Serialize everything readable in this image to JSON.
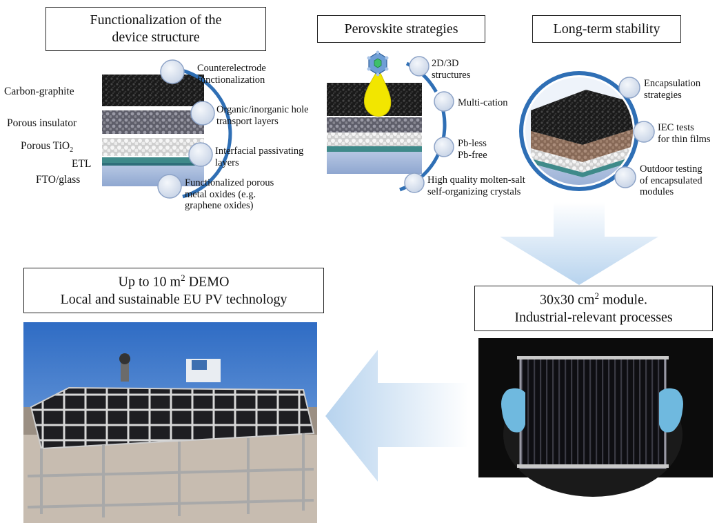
{
  "panels": {
    "device_structure": {
      "title_line1": "Functionalization of the",
      "title_line2": "device structure"
    },
    "perovskite": {
      "title": "Perovskite strategies"
    },
    "stability": {
      "title": "Long-term stability"
    },
    "demo": {
      "line1_pre": "Up to 10 m",
      "line1_sup": "2",
      "line1_post": " DEMO",
      "line2": "Local and sustainable EU PV technology"
    },
    "module": {
      "line1_pre": "30x30 cm",
      "line1_sup": "2",
      "line1_post": " module.",
      "line2": "Industrial-relevant processes"
    }
  },
  "layers": {
    "carbon": "Carbon-graphite",
    "insulator": "Porous insulator",
    "tio2_pre": "Porous TiO",
    "tio2_sub": "2",
    "etl": "ETL",
    "fto": "FTO/glass"
  },
  "device_items": {
    "counter_1": "Counterelectrode",
    "counter_2": "functionalization",
    "htl_1": "Organic/inorganic hole",
    "htl_2": "transport layers",
    "passiv_1": "Interfacial passivating",
    "passiv_2": "layers",
    "oxide_1": "Functionalized porous",
    "oxide_2": "metal oxides (e.g.",
    "oxide_3": "graphene oxides)"
  },
  "perovskite_items": {
    "dim_1": "2D/3D",
    "dim_2": "structures",
    "cation": "Multi-cation",
    "pb_1": "Pb-less",
    "pb_2": "Pb-free",
    "crystal_1": "High quality molten-salt",
    "crystal_2": "self-organizing crystals"
  },
  "stability_items": {
    "encap_1": "Encapsulation",
    "encap_2": "strategies",
    "iec_1": "IEC tests",
    "iec_2": "for thin films",
    "outdoor_1": "Outdoor testing",
    "outdoor_2": "of encapsulated",
    "outdoor_3": "modules"
  },
  "colors": {
    "ring_blue": "#2f6fb5",
    "node_fill": "#dde6f2",
    "carbon": "#1b1b1b",
    "insulator": "#7c7c88",
    "tio2": "#e8e8e8",
    "etl": "#3f8a8a",
    "glass": "#a9bcdc",
    "droplet": "#f2e600",
    "arrow": "#bdd7ee"
  }
}
